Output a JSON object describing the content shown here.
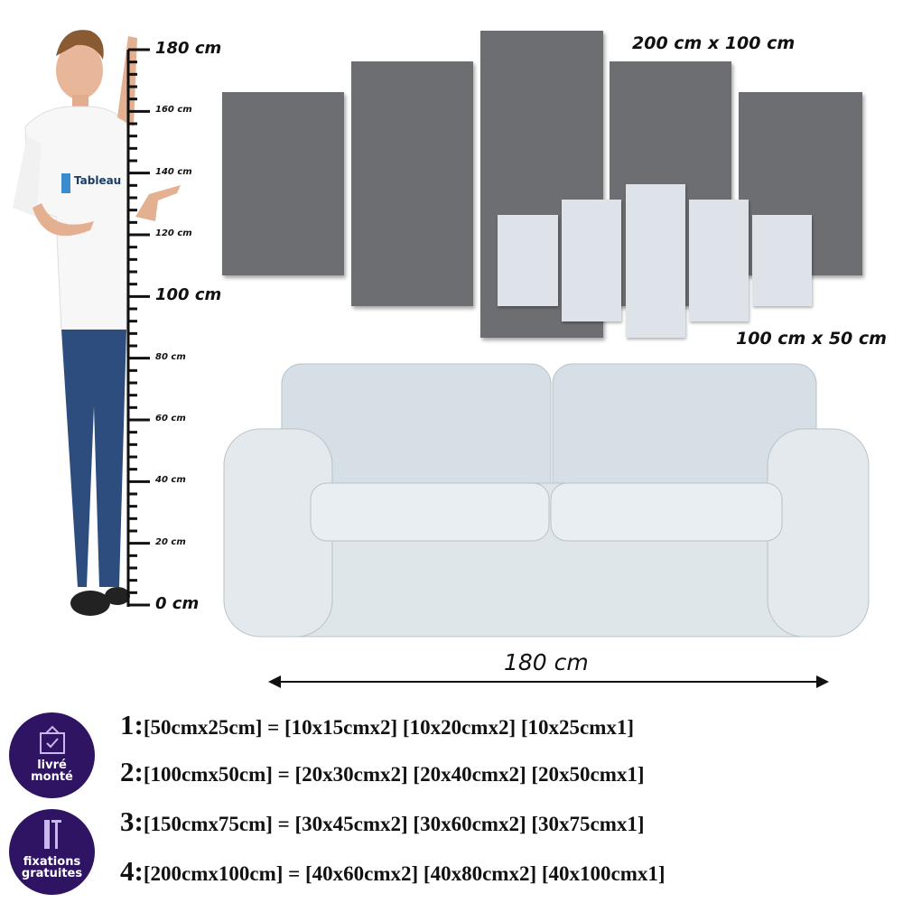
{
  "ruler": {
    "labels": [
      "180 cm",
      "160 cm",
      "140 cm",
      "120 cm",
      "100 cm",
      "80 cm",
      "60 cm",
      "40 cm",
      "20 cm",
      "0 cm"
    ]
  },
  "shirt_logo": "Tableau",
  "panels": {
    "large_label": "200 cm x 100 cm",
    "small_label": "100 cm x 50 cm"
  },
  "sofa": {
    "width_label": "180 cm"
  },
  "badges": [
    {
      "icon": "framed-picture-check-icon",
      "line1": "livré",
      "line2": "monté"
    },
    {
      "icon": "wall-plug-screw-icon",
      "line1": "fixations",
      "line2": "gratuites"
    }
  ],
  "sizes": [
    {
      "num": "1:",
      "text": "[50cmx25cm] = [10x15cmx2] [10x20cmx2] [10x25cmx1]"
    },
    {
      "num": "2:",
      "text": "[100cmx50cm] = [20x30cmx2] [20x40cmx2] [20x50cmx1]"
    },
    {
      "num": "3:",
      "text": "[150cmx75cm] = [30x45cmx2] [30x60cmx2] [30x75cmx1]"
    },
    {
      "num": "4:",
      "text": "[200cmx100cm] = [40x60cmx2] [40x80cmx2] [40x100cmx1]"
    }
  ],
  "colors": {
    "panel_dark": "#6c6e72",
    "panel_light": "#dde3e9",
    "badge": "#2f1463",
    "sofa": "#dfe6ea"
  }
}
